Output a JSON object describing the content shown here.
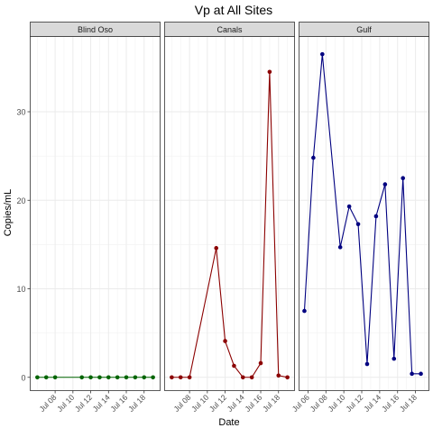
{
  "chart_data": {
    "type": "line",
    "title": "Vp at All Sites",
    "xlabel": "Date",
    "ylabel": "Copies/mL",
    "ylim": [
      -1.5,
      38.5
    ],
    "yticks": [
      0,
      10,
      20,
      30
    ],
    "grid": true,
    "legend": "none",
    "panels": [
      {
        "name": "Blind Oso",
        "color": "#006400",
        "xlim": [
          5.2,
          19.8
        ],
        "xticks": [
          8,
          10,
          12,
          14,
          16,
          18
        ],
        "xtick_labels": [
          "Jul 08",
          "Jul 10",
          "Jul 12",
          "Jul 14",
          "Jul 16",
          "Jul 18"
        ],
        "x": [
          6,
          7,
          8,
          11,
          12,
          13,
          14,
          15,
          16,
          17,
          18,
          19
        ],
        "y": [
          0,
          0,
          0,
          0,
          0,
          0,
          0,
          0,
          0,
          0,
          0,
          0
        ]
      },
      {
        "name": "Canals",
        "color": "#8B0000",
        "xlim": [
          5.2,
          19.8
        ],
        "xticks": [
          8,
          10,
          12,
          14,
          16,
          18
        ],
        "xtick_labels": [
          "Jul 08",
          "Jul 10",
          "Jul 12",
          "Jul 14",
          "Jul 16",
          "Jul 18"
        ],
        "x": [
          6,
          7,
          8,
          11,
          12,
          13,
          14,
          15,
          16,
          17,
          18,
          19
        ],
        "y": [
          0,
          0,
          0,
          14.6,
          4.1,
          1.3,
          0,
          0,
          1.6,
          34.5,
          0.2,
          0
        ]
      },
      {
        "name": "Gulf",
        "color": "#000080",
        "xlim": [
          5.0,
          19.5
        ],
        "xticks": [
          6,
          8,
          10,
          12,
          14,
          16,
          18
        ],
        "xtick_labels": [
          "Jul 06",
          "Jul 08",
          "Jul 10",
          "Jul 12",
          "Jul 14",
          "Jul 16",
          "Jul 18"
        ],
        "x": [
          5.6,
          6.6,
          7.6,
          9.6,
          10.6,
          11.6,
          12.6,
          13.6,
          14.6,
          15.6,
          16.6,
          17.6,
          18.6
        ],
        "y": [
          7.5,
          24.8,
          36.5,
          14.7,
          19.3,
          17.3,
          1.5,
          18.2,
          21.8,
          2.1,
          22.5,
          0.4,
          0.4
        ]
      }
    ]
  }
}
